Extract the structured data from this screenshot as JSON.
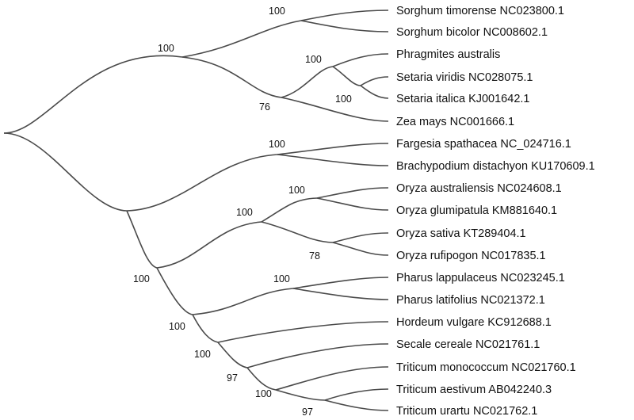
{
  "taxa": [
    "Sorghum timorense NC023800.1",
    "Sorghum bicolor NC008602.1",
    "Phragmites australis",
    "Setaria viridis NC028075.1",
    "Setaria italica KJ001642.1",
    "Zea mays NC001666.1",
    "Fargesia spathacea NC_024716.1",
    "Brachypodium distachyon KU170609.1",
    "Oryza australiensis NC024608.1",
    "Oryza glumipatula KM881640.1",
    "Oryza sativa KT289404.1",
    "Oryza rufipogon NC017835.1",
    "Pharus lappulaceus NC023245.1",
    "Pharus latifolius NC021372.1",
    "Hordeum vulgare KC912688.1",
    "Secale cereale NC021761.1",
    "Triticum monococcum NC021760.1",
    "Triticum aestivum AB042240.3",
    "Triticum urartu NC021762.1"
  ],
  "support": {
    "sorghum": "100",
    "panicoid": "100",
    "setaria_phragmites": "100",
    "setaria": "100",
    "zea_group": "76",
    "fargesia_brachy": "100",
    "oryza": "100",
    "oryza_a": "100",
    "oryza_b": "78",
    "lower": "100",
    "pharus": "100",
    "pooid_a": "100",
    "pooid_b": "100",
    "pooid_c": "97",
    "triticum": "100",
    "triticum_b": "97"
  },
  "colors": {
    "branch": "#4a4a4a",
    "text": "#111111"
  }
}
